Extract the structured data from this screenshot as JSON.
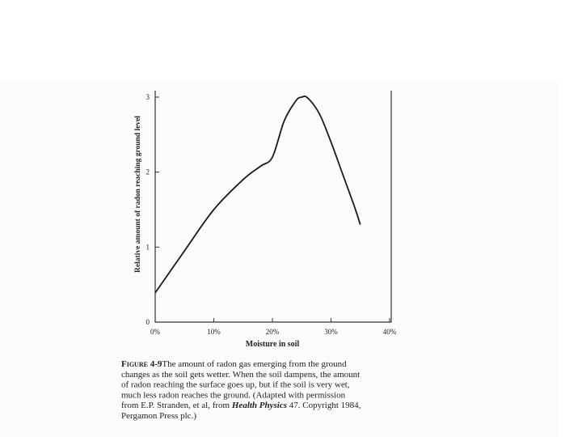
{
  "chart_data": {
    "type": "line",
    "x_label": "Moisture in soil",
    "y_label": "Relative amount of radon reaching ground level",
    "x": [
      0,
      5,
      10,
      15,
      18,
      20,
      22,
      24,
      25,
      26,
      28,
      30,
      32,
      34,
      35
    ],
    "series": [
      {
        "color": "#1a1a1a",
        "values": [
          0.39,
          0.95,
          1.5,
          1.9,
          2.08,
          2.2,
          2.68,
          2.95,
          3.0,
          2.99,
          2.78,
          2.4,
          1.97,
          1.54,
          1.3
        ]
      }
    ],
    "xlim": [
      0,
      40
    ],
    "ylim": [
      0,
      3
    ],
    "xticks": [
      {
        "value": 0,
        "label": "0%"
      },
      {
        "value": 10,
        "label": "10%"
      },
      {
        "value": 20,
        "label": "20%"
      },
      {
        "value": 30,
        "label": "30%"
      },
      {
        "value": 40,
        "label": "40%"
      }
    ],
    "yticks": [
      0,
      1,
      2,
      3
    ],
    "caption": {
      "label": "Figure 4-9",
      "lines": [
        [
          "The amount of radon gas emerging from the ground"
        ],
        [
          "changes as the soil gets wetter. When the soil dampens, the amount"
        ],
        [
          "of radon reaching the surface goes up, but if the soil is very wet,"
        ],
        [
          "much less radon reaches the ground. (Adapted with permission"
        ],
        [
          "from E.P. Stranden, et al, from ",
          "Health Physics",
          " 47. Copyright 1984,"
        ],
        [
          "Pergamon Press plc.)"
        ]
      ],
      "italic": [
        [
          4,
          1
        ]
      ]
    }
  }
}
